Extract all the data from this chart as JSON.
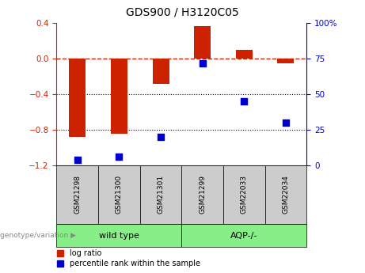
{
  "title": "GDS900 / H3120C05",
  "samples": [
    "GSM21298",
    "GSM21300",
    "GSM21301",
    "GSM21299",
    "GSM22033",
    "GSM22034"
  ],
  "log_ratio": [
    -0.88,
    -0.85,
    -0.28,
    0.37,
    0.1,
    -0.05
  ],
  "percentile_rank": [
    4,
    6,
    20,
    72,
    45,
    30
  ],
  "ylim_left": [
    -1.2,
    0.4
  ],
  "ylim_right": [
    0,
    100
  ],
  "yticks_left": [
    -1.2,
    -0.8,
    -0.4,
    0.0,
    0.4
  ],
  "yticks_right": [
    0,
    25,
    50,
    75,
    100
  ],
  "ytick_labels_right": [
    "0",
    "25",
    "50",
    "75",
    "100%"
  ],
  "bar_color": "#cc2200",
  "dot_color": "#0000cc",
  "dashed_line_color": "#cc2200",
  "dotted_line_color": "#000000",
  "group1_label": "wild type",
  "group2_label": "AQP-/-",
  "group_bg_color": "#88ee88",
  "sample_bg_color": "#cccccc",
  "legend_log_ratio": "log ratio",
  "legend_percentile": "percentile rank within the sample",
  "genotype_label": "genotype/variation"
}
